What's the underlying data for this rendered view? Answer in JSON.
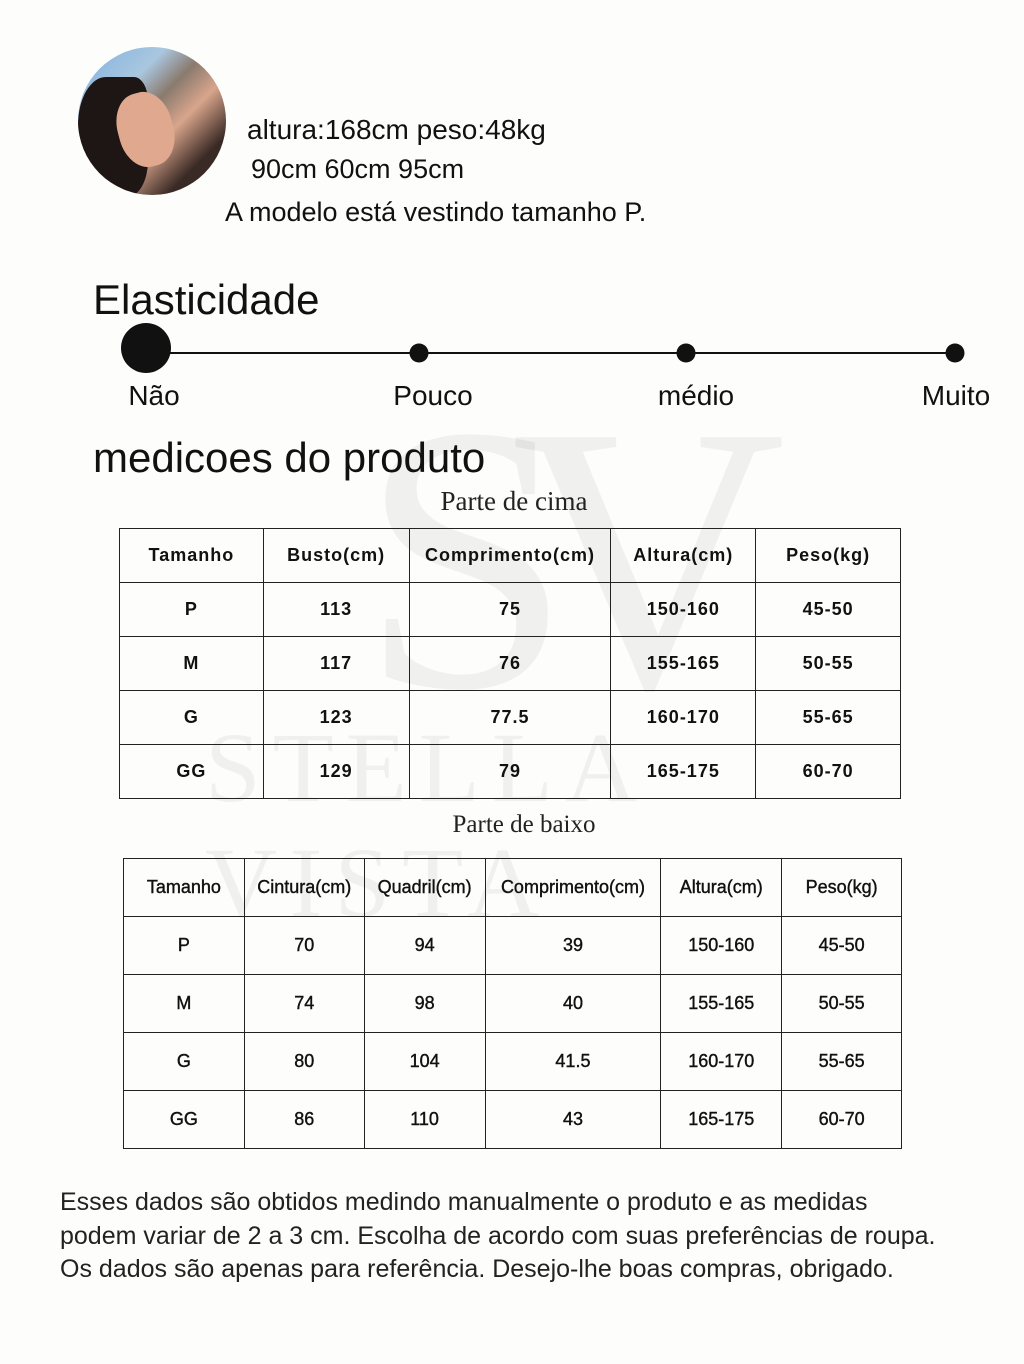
{
  "watermark": {
    "monogram": "SV",
    "brand": "STELLA VISTA"
  },
  "model": {
    "height_weight": "altura:168cm   peso:48kg",
    "measurements": "90cm 60cm 95cm",
    "size_note": "A modelo está vestindo tamanho P."
  },
  "elasticity": {
    "title": "Elasticidade",
    "levels": [
      "Não",
      "Pouco",
      "médio",
      "Muito"
    ],
    "selected": "Não"
  },
  "measurements": {
    "title": "medicoes do produto",
    "top": {
      "caption": "Parte de cima",
      "headers": [
        "Tamanho",
        "Busto(cm)",
        "Comprimento(cm)",
        "Altura(cm)",
        "Peso(kg)"
      ],
      "rows": [
        [
          "P",
          "113",
          "75",
          "150-160",
          "45-50"
        ],
        [
          "M",
          "117",
          "76",
          "155-165",
          "50-55"
        ],
        [
          "G",
          "123",
          "77.5",
          "160-170",
          "55-65"
        ],
        [
          "GG",
          "129",
          "79",
          "165-175",
          "60-70"
        ]
      ]
    },
    "bottom": {
      "caption": "Parte de baixo",
      "headers": [
        "Tamanho",
        "Cintura(cm)",
        "Quadril(cm)",
        "Comprimento(cm)",
        "Altura(cm)",
        "Peso(kg)"
      ],
      "rows": [
        [
          "P",
          "70",
          "94",
          "39",
          "150-160",
          "45-50"
        ],
        [
          "M",
          "74",
          "98",
          "40",
          "155-165",
          "50-55"
        ],
        [
          "G",
          "80",
          "104",
          "41.5",
          "160-170",
          "55-65"
        ],
        [
          "GG",
          "86",
          "110",
          "43",
          "165-175",
          "60-70"
        ]
      ]
    }
  },
  "disclaimer": [
    "Esses dados são obtidos medindo manualmente o produto e as medidas",
    "podem variar de 2 a 3 cm. Escolha de acordo com suas preferências de roupa.",
    "Os dados são apenas para referência. Desejo-lhe boas compras, obrigado."
  ]
}
